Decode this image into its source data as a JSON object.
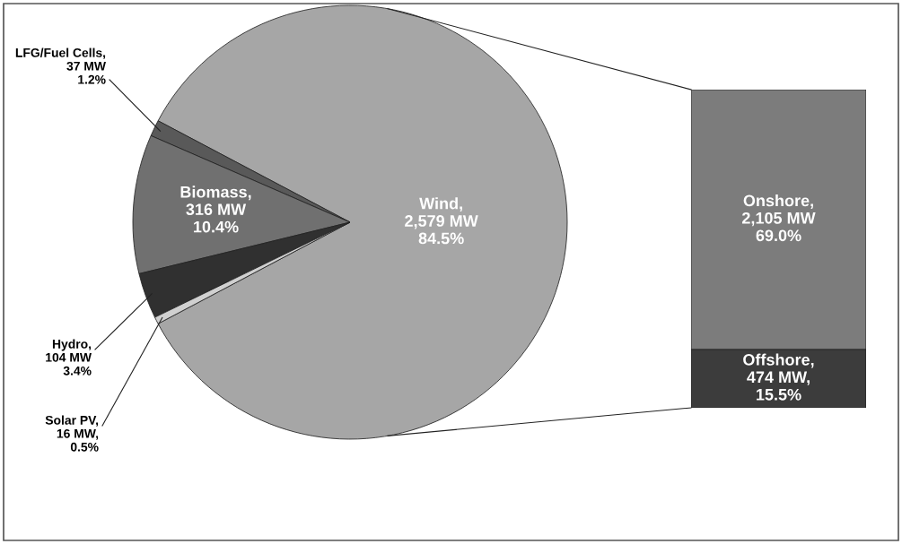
{
  "chart_data": [
    {
      "type": "pie",
      "categories": [
        "Wind",
        "LFG/Fuel Cells",
        "Biomass",
        "Hydro",
        "Solar PV"
      ],
      "values": [
        2579,
        37,
        316,
        104,
        16
      ],
      "colors": [
        "#a6a6a6",
        "#595959",
        "#707070",
        "#303030",
        "#d0d0d0"
      ],
      "value_labels": [
        ",\n2,579 MW\n84.5%",
        ",\n37 MW\n1.2%",
        ",\n316 MW\n10.4%",
        ",\n104 MW\n3.4%",
        ",\n16 MW,\n0.5%"
      ]
    },
    {
      "type": "bar",
      "stacked": true,
      "categories": [
        null
      ],
      "series": [
        {
          "name": "Offshore,",
          "color": "#3c3c3c",
          "values": [
            474
          ],
          "value_labels": [
            "474 MW,\n15.5%"
          ]
        },
        {
          "name": "Onshore,",
          "color": "#7c7c7c",
          "values": [
            2105
          ],
          "value_labels": [
            "2,105 MW\n69.0%"
          ]
        }
      ]
    }
  ]
}
